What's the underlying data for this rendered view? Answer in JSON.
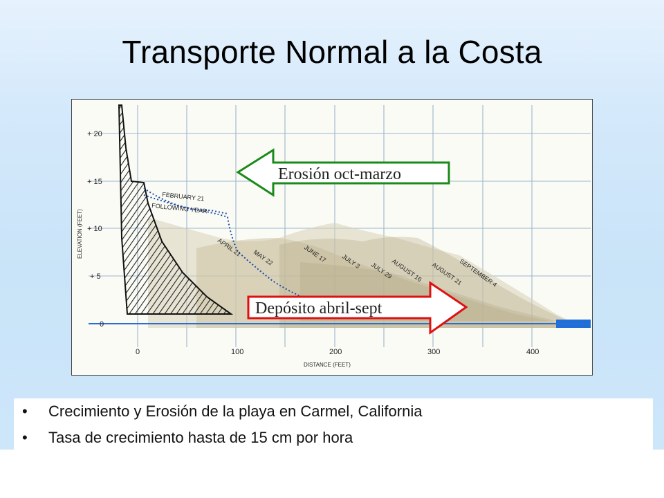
{
  "slide": {
    "title": "Transporte Normal a la Costa"
  },
  "figure": {
    "y_axis_label": "ELEVATION (FEET)",
    "x_axis_label": "DISTANCE (FEET)",
    "y_ticks": [
      "+ 20",
      "+ 15",
      "+ 10",
      "+ 5",
      "0"
    ],
    "x_ticks": [
      "0",
      "100",
      "200",
      "300",
      "400"
    ],
    "profile_labels": [
      "FEBRUARY 21",
      "FOLLOWING YEAR",
      "APRIL 21",
      "MAY 22",
      "JUNE 17",
      "JULY 3",
      "JULY 29",
      "AUGUST 16",
      "AUGUST 21",
      "SEPTEMBER 4"
    ],
    "erosion_arrow": {
      "label": "Erosión oct-marzo",
      "color": "#1a8a1a"
    },
    "deposit_arrow": {
      "label": "Depósito abril-sept",
      "color": "#e01010"
    }
  },
  "bullets": [
    "Crecimiento y Erosión de la playa en Carmel, California",
    "Tasa de crecimiento hasta de 15 cm por hora"
  ]
}
